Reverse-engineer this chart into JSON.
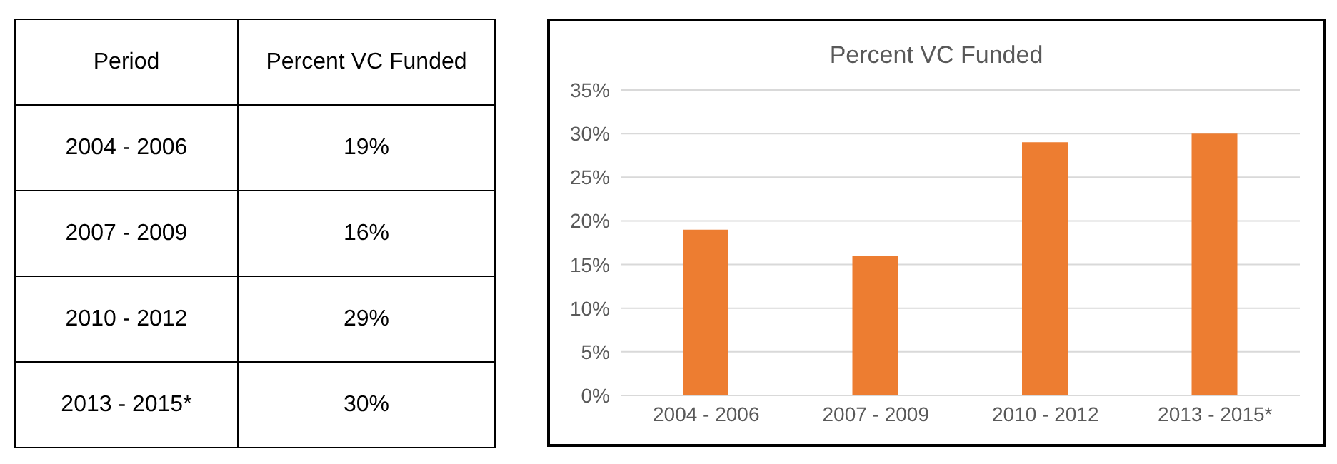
{
  "chart_data": [
    {
      "type": "other",
      "annotations": [
        "Period",
        "Percent VC Funded",
        "2004 - 2006",
        "19%",
        "2007 - 2009",
        "16%",
        "2010 - 2012",
        "29%",
        "2013 - 2015*",
        "30%"
      ]
    },
    {
      "type": "bar",
      "title": "Percent VC Funded",
      "categories": [
        "2004 - 2006",
        "2007 - 2009",
        "2010 - 2012",
        "2013 - 2015*"
      ],
      "values": [
        19,
        16,
        29,
        30
      ],
      "color": "#ed7d31",
      "ylim": [
        0,
        35
      ],
      "yticks": [
        {
          "value": 0,
          "label": "0%"
        },
        {
          "value": 5,
          "label": "5%"
        },
        {
          "value": 10,
          "label": "10%"
        },
        {
          "value": 15,
          "label": "15%"
        },
        {
          "value": 20,
          "label": "20%"
        },
        {
          "value": 25,
          "label": "25%"
        },
        {
          "value": 30,
          "label": "30%"
        },
        {
          "value": 35,
          "label": "35%"
        }
      ],
      "grid": "y"
    }
  ]
}
